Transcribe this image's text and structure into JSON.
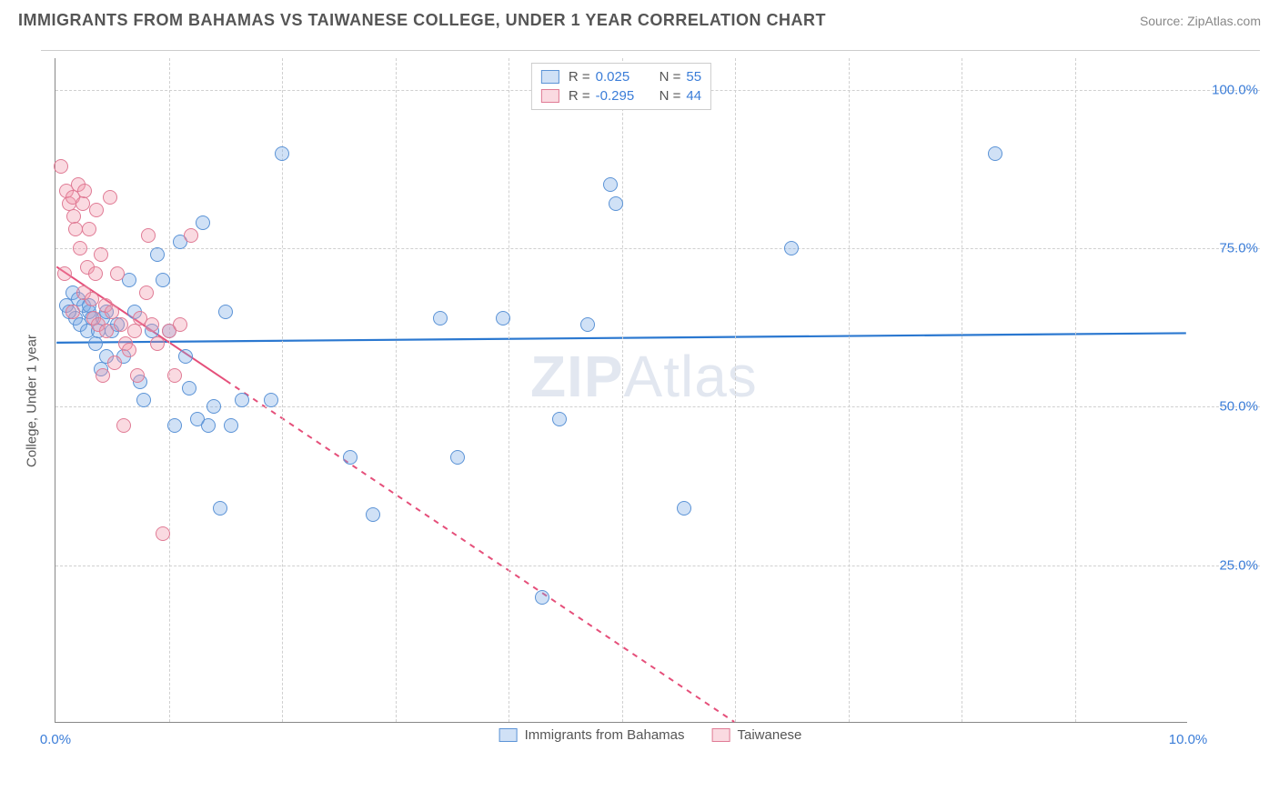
{
  "title": "IMMIGRANTS FROM BAHAMAS VS TAIWANESE COLLEGE, UNDER 1 YEAR CORRELATION CHART",
  "source": "Source: ZipAtlas.com",
  "watermark_bold": "ZIP",
  "watermark_thin": "Atlas",
  "y_axis_label": "College, Under 1 year",
  "chart": {
    "type": "scatter",
    "xlim": [
      0,
      10
    ],
    "ylim": [
      0,
      105
    ],
    "x_ticks": [
      0,
      10
    ],
    "x_tick_labels": [
      "0.0%",
      "10.0%"
    ],
    "y_ticks": [
      25,
      50,
      75,
      100
    ],
    "y_tick_labels": [
      "25.0%",
      "50.0%",
      "75.0%",
      "100.0%"
    ],
    "x_gridlines": [
      1,
      2,
      3,
      4,
      5,
      6,
      7,
      8,
      9
    ],
    "background_color": "#ffffff",
    "grid_color": "#d0d0d0",
    "axis_color": "#888888",
    "tick_label_color": "#3b7dd8",
    "marker_radius": 8,
    "marker_stroke_width": 1.2,
    "series": [
      {
        "name": "Immigrants from Bahamas",
        "fill": "rgba(120, 170, 230, 0.35)",
        "stroke": "#5b93d6",
        "r_value": "0.025",
        "n_value": "55",
        "trend": {
          "x1": 0,
          "y1": 60,
          "x2": 10,
          "y2": 61.5,
          "color": "#2b78d0",
          "width": 2.2,
          "dash": "none"
        },
        "points": [
          [
            0.1,
            66
          ],
          [
            0.15,
            68
          ],
          [
            0.18,
            64
          ],
          [
            0.2,
            67
          ],
          [
            0.22,
            63
          ],
          [
            0.25,
            66
          ],
          [
            0.28,
            62
          ],
          [
            0.3,
            65
          ],
          [
            0.32,
            64
          ],
          [
            0.35,
            60
          ],
          [
            0.38,
            62
          ],
          [
            0.4,
            56
          ],
          [
            0.42,
            64
          ],
          [
            0.45,
            58
          ],
          [
            0.5,
            62
          ],
          [
            0.55,
            63
          ],
          [
            0.6,
            58
          ],
          [
            0.65,
            70
          ],
          [
            0.7,
            65
          ],
          [
            0.75,
            54
          ],
          [
            0.78,
            51
          ],
          [
            0.85,
            62
          ],
          [
            0.9,
            74
          ],
          [
            0.95,
            70
          ],
          [
            1.0,
            62
          ],
          [
            1.05,
            47
          ],
          [
            1.1,
            76
          ],
          [
            1.15,
            58
          ],
          [
            1.18,
            53
          ],
          [
            1.25,
            48
          ],
          [
            1.3,
            79
          ],
          [
            1.35,
            47
          ],
          [
            1.4,
            50
          ],
          [
            1.45,
            34
          ],
          [
            1.5,
            65
          ],
          [
            1.55,
            47
          ],
          [
            1.65,
            51
          ],
          [
            1.9,
            51
          ],
          [
            2.0,
            90
          ],
          [
            2.6,
            42
          ],
          [
            2.8,
            33
          ],
          [
            3.4,
            64
          ],
          [
            3.55,
            42
          ],
          [
            3.95,
            64
          ],
          [
            4.3,
            20
          ],
          [
            4.45,
            48
          ],
          [
            4.7,
            63
          ],
          [
            4.9,
            85
          ],
          [
            4.95,
            82
          ],
          [
            5.55,
            34
          ],
          [
            6.5,
            75
          ],
          [
            8.3,
            90
          ],
          [
            0.3,
            66
          ],
          [
            0.45,
            65
          ],
          [
            0.12,
            65
          ]
        ]
      },
      {
        "name": "Taiwanese",
        "fill": "rgba(240, 150, 170, 0.35)",
        "stroke": "#e07b95",
        "r_value": "-0.295",
        "n_value": "44",
        "trend": {
          "x1": 0,
          "y1": 72,
          "x2": 6.0,
          "y2": 0,
          "color": "#e54f7a",
          "width": 2,
          "dash": "solid_then_dash",
          "solid_until_x": 1.5
        },
        "points": [
          [
            0.05,
            88
          ],
          [
            0.08,
            71
          ],
          [
            0.1,
            84
          ],
          [
            0.12,
            82
          ],
          [
            0.15,
            83
          ],
          [
            0.16,
            80
          ],
          [
            0.18,
            78
          ],
          [
            0.2,
            85
          ],
          [
            0.22,
            75
          ],
          [
            0.24,
            82
          ],
          [
            0.25,
            68
          ],
          [
            0.26,
            84
          ],
          [
            0.28,
            72
          ],
          [
            0.3,
            78
          ],
          [
            0.32,
            67
          ],
          [
            0.34,
            64
          ],
          [
            0.35,
            71
          ],
          [
            0.36,
            81
          ],
          [
            0.38,
            63
          ],
          [
            0.4,
            74
          ],
          [
            0.42,
            55
          ],
          [
            0.44,
            66
          ],
          [
            0.45,
            62
          ],
          [
            0.48,
            83
          ],
          [
            0.5,
            65
          ],
          [
            0.52,
            57
          ],
          [
            0.55,
            71
          ],
          [
            0.58,
            63
          ],
          [
            0.6,
            47
          ],
          [
            0.62,
            60
          ],
          [
            0.65,
            59
          ],
          [
            0.7,
            62
          ],
          [
            0.72,
            55
          ],
          [
            0.75,
            64
          ],
          [
            0.8,
            68
          ],
          [
            0.82,
            77
          ],
          [
            0.85,
            63
          ],
          [
            0.9,
            60
          ],
          [
            0.95,
            30
          ],
          [
            1.0,
            62
          ],
          [
            1.05,
            55
          ],
          [
            1.1,
            63
          ],
          [
            1.2,
            77
          ],
          [
            0.15,
            65
          ]
        ]
      }
    ]
  },
  "legend_top": [
    {
      "swatch_fill": "rgba(120,170,230,0.35)",
      "swatch_stroke": "#5b93d6",
      "r": "0.025",
      "n": "55"
    },
    {
      "swatch_fill": "rgba(240,150,170,0.35)",
      "swatch_stroke": "#e07b95",
      "r": "-0.295",
      "n": "44"
    }
  ],
  "legend_bottom": [
    {
      "swatch_fill": "rgba(120,170,230,0.35)",
      "swatch_stroke": "#5b93d6",
      "label": "Immigrants from Bahamas"
    },
    {
      "swatch_fill": "rgba(240,150,170,0.35)",
      "swatch_stroke": "#e07b95",
      "label": "Taiwanese"
    }
  ]
}
